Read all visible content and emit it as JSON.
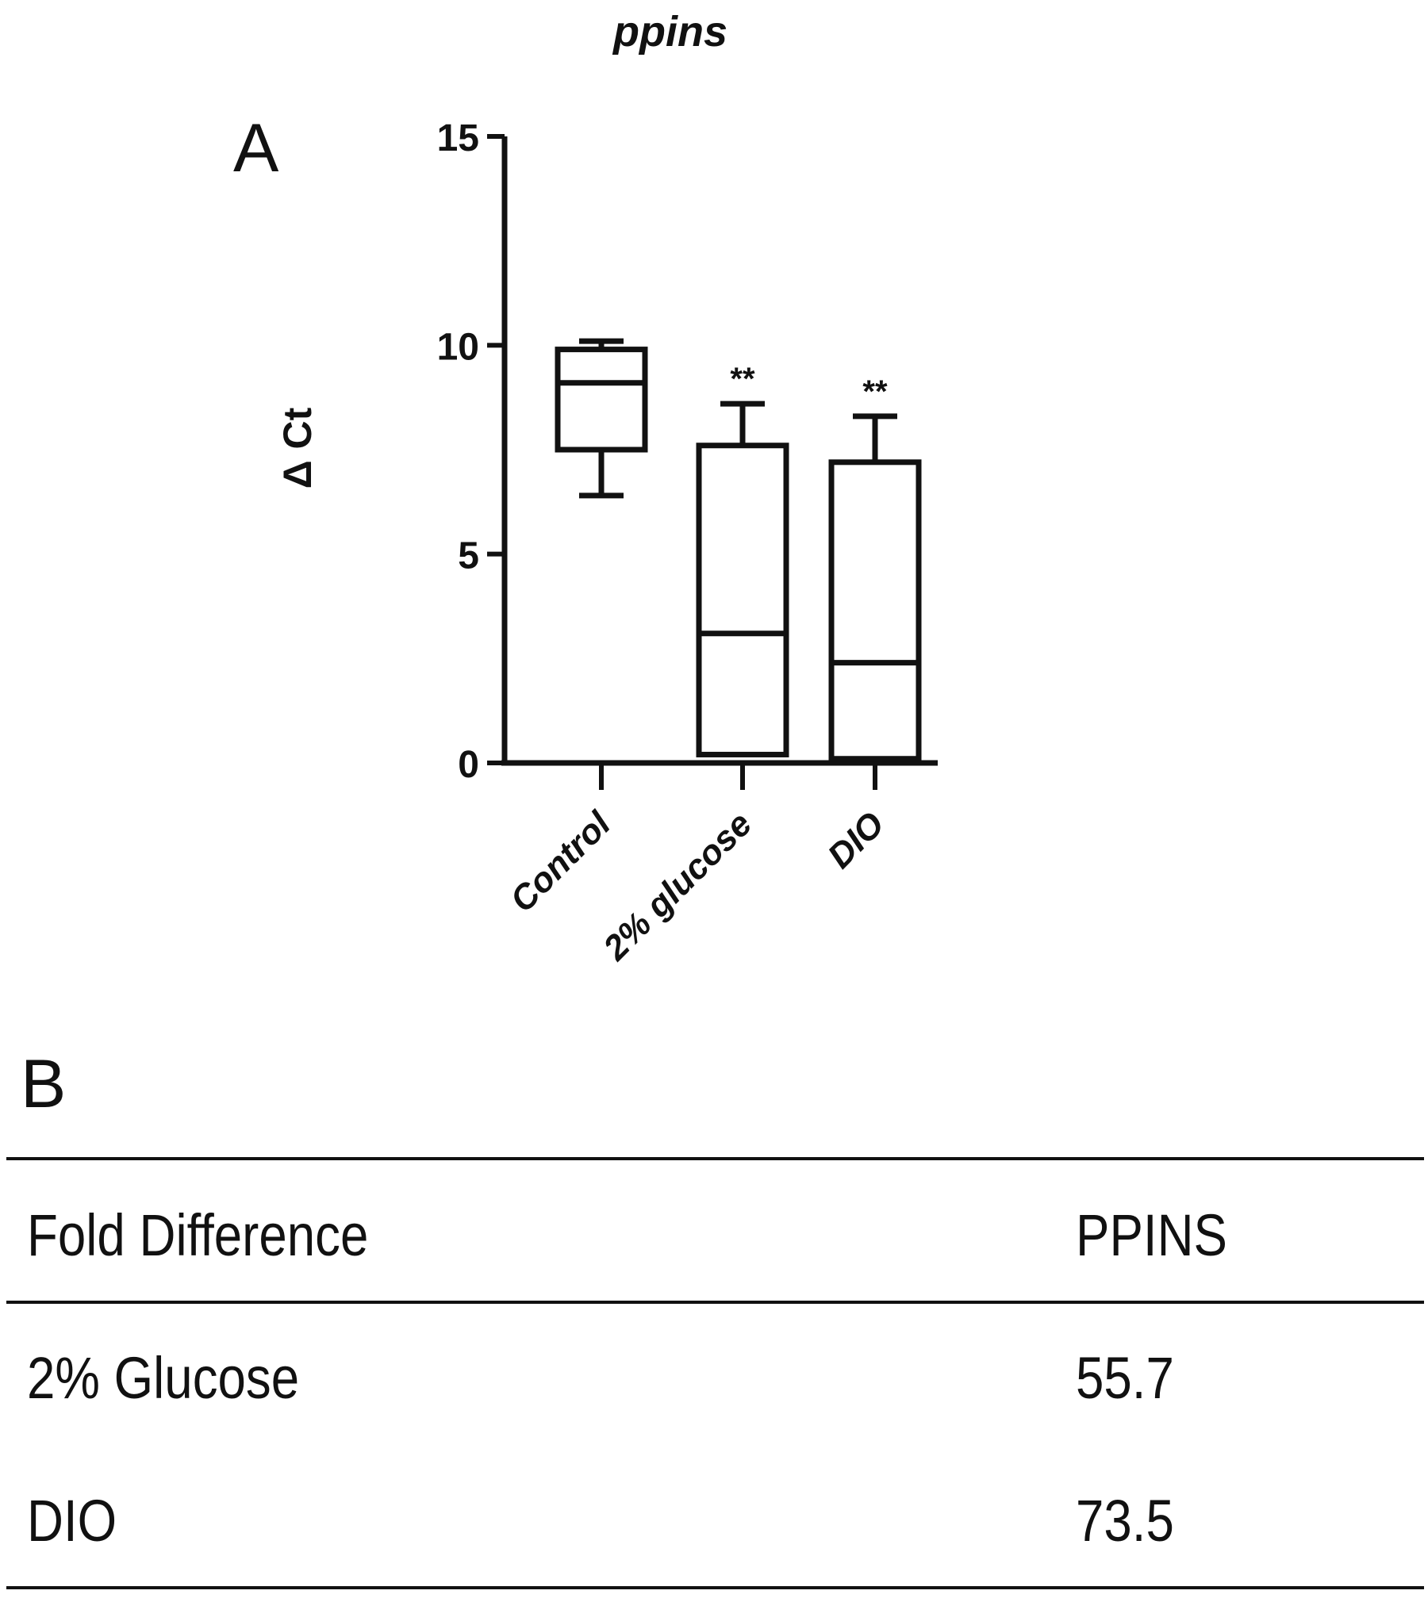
{
  "panel_a_label": "A",
  "panel_b_label": "B",
  "chart_data": {
    "type": "box",
    "title": "ppins",
    "xlabel": "",
    "ylabel": "Δ Ct",
    "ylim": [
      0,
      15
    ],
    "yticks": [
      0,
      5,
      10,
      15
    ],
    "grid": false,
    "categories": [
      "Control",
      "2% glucose",
      "DIO"
    ],
    "boxes": [
      {
        "category": "Control",
        "min": 6.4,
        "q1": 7.5,
        "median": 9.1,
        "q3": 9.9,
        "max": 10.1,
        "annotation": ""
      },
      {
        "category": "2% glucose",
        "min": 0.2,
        "q1": 0.2,
        "median": 3.1,
        "q3": 7.6,
        "max": 8.6,
        "annotation": "**"
      },
      {
        "category": "DIO",
        "min": 0.1,
        "q1": 0.1,
        "median": 2.4,
        "q3": 7.2,
        "max": 8.3,
        "annotation": "**"
      }
    ]
  },
  "table": {
    "header": {
      "label": "Fold Difference",
      "value": "PPINS"
    },
    "rows": [
      {
        "label": "2% Glucose",
        "value": "55.7"
      },
      {
        "label": "DIO",
        "value": "73.5"
      }
    ]
  }
}
